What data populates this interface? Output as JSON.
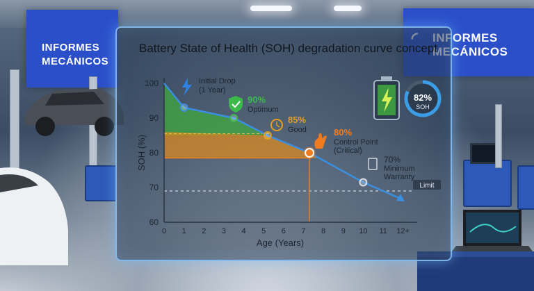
{
  "banners": {
    "left": [
      "INFORMES",
      "MECÁNICOS"
    ],
    "right": [
      "INFORMES",
      "MECÁNICOS"
    ],
    "logo_icon": "wifi-arc-icon"
  },
  "chart_data": {
    "type": "line",
    "title": "Battery State of Health (SOH) degradation curve concept",
    "xlabel": "Age (Years)",
    "ylabel": "SOH (%)",
    "xlim": [
      0,
      12.5
    ],
    "ylim": [
      60,
      100
    ],
    "x_ticks": [
      "0",
      "1",
      "2",
      "3",
      "4",
      "5",
      "6",
      "7",
      "8",
      "9",
      "10",
      "11",
      "12+"
    ],
    "y_ticks": [
      "60",
      "70",
      "80",
      "90",
      "100"
    ],
    "series": [
      {
        "color": "#3b8fe0",
        "x": [
          0,
          1,
          3.5,
          5.2,
          7.3,
          10,
          11.8
        ],
        "y": [
          100,
          93,
          90,
          85,
          80,
          71.5,
          67
        ]
      }
    ],
    "bands": [
      {
        "from": 85,
        "to": 100,
        "color": "#3fa83f"
      },
      {
        "from": 80,
        "to": 85,
        "color": "#b6a23a"
      },
      {
        "from": 78.5,
        "to": 86,
        "color": "#d88a20"
      }
    ],
    "limit_line": {
      "y": 69,
      "label": "Limit"
    },
    "control_point": {
      "x": 7.3,
      "y": 80,
      "color": "#f07b1e"
    },
    "annotations": [
      {
        "icon": "lightning-icon",
        "color": "#2f80e0",
        "lines": [
          "Initial Drop",
          "(1 Year)"
        ],
        "value": ""
      },
      {
        "icon": "shield-check-icon",
        "color": "#3db84a",
        "value": "90%",
        "lines": [
          "Optimum"
        ]
      },
      {
        "icon": "clock-icon",
        "color": "#e0a020",
        "value": "85%",
        "lines": [
          "Good"
        ]
      },
      {
        "icon": "warning-hand-icon",
        "color": "#f07b1e",
        "value": "80%",
        "lines": [
          "Control Point",
          "(Critical)"
        ]
      },
      {
        "icon": "document-icon",
        "color": "#d0d6de",
        "value": "70%",
        "lines": [
          "Minimum",
          "Warranty"
        ]
      }
    ],
    "gauge": {
      "value": "82%",
      "label": "SOH",
      "fraction": 0.82
    },
    "battery_icon": "battery-charging-icon"
  }
}
